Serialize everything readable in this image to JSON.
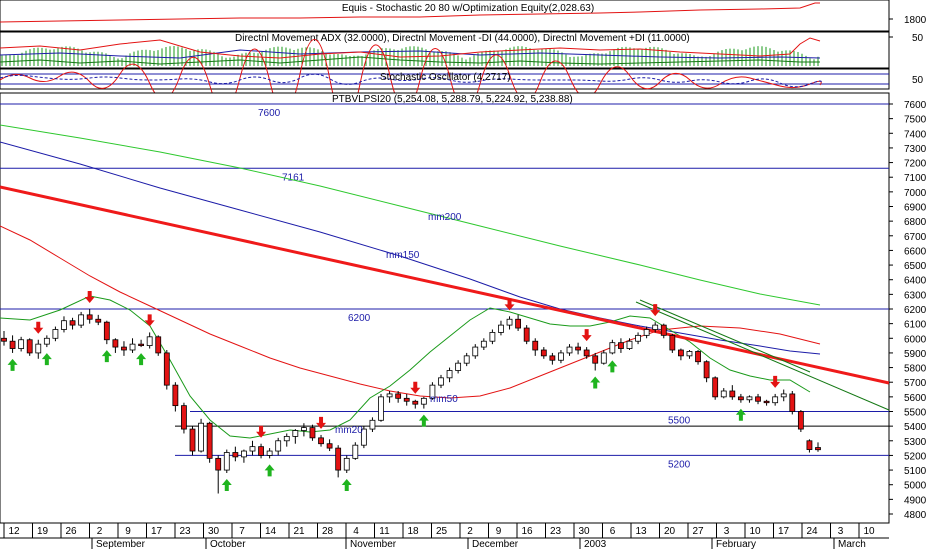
{
  "panels": {
    "equity": {
      "title": "Equis - Stochastic 20 80  w/Optimization Equity(2,028.63)",
      "ticks": [
        "1800"
      ]
    },
    "dmi": {
      "title": "Directnl Movement ADX (32.0000), Directnl Movement -DI (44.0000), Directnl Movement +DI (11.0000)",
      "ticks": [
        "50"
      ]
    },
    "stoch": {
      "title": "Stochastic Oscillator (4.2717)",
      "ticks": [
        "50"
      ]
    },
    "price": {
      "title": "PTBVLPSI20 (5,254.08, 5,288.79, 5,224.92, 5,238.88)"
    }
  },
  "colors": {
    "up": "#ffffff",
    "down": "#e31313",
    "mm20": "#1a9a1a",
    "mm50": "#e31313",
    "mm150": "#1c1ca8",
    "mm200": "#2ec82e",
    "trend_red": "#ef1a1a",
    "trend_green": "#147814",
    "level": "#1c1ca8",
    "arrow_buy": "#1fb41f",
    "arrow_sell": "#e31313"
  },
  "chart_data": {
    "type": "candlestick",
    "yaxis": {
      "ylim": [
        4700,
        7700
      ],
      "ticks": [
        4800,
        4900,
        5000,
        5100,
        5200,
        5300,
        5400,
        5500,
        5600,
        5700,
        5800,
        5900,
        6000,
        6100,
        6200,
        6300,
        6400,
        6500,
        6600,
        6700,
        6800,
        6900,
        7000,
        7100,
        7200,
        7300,
        7400,
        7500,
        7600
      ]
    },
    "xaxis": {
      "day_ticks": [
        "12",
        "19",
        "26",
        "2",
        "9",
        "17",
        "23",
        "30",
        "7",
        "14",
        "21",
        "28",
        "4",
        "11",
        "18",
        "25",
        "2",
        "9",
        "16",
        "23",
        "30",
        "6",
        "13",
        "20",
        "27",
        "3",
        "10",
        "17",
        "24",
        "3",
        "10"
      ],
      "month_labels": [
        "September",
        "October",
        "November",
        "December",
        "2003",
        "February",
        "March"
      ]
    },
    "level_lines": [
      {
        "value": 7600,
        "label": "7600"
      },
      {
        "value": 7161,
        "label": "7161"
      },
      {
        "value": 6200,
        "label": "6200"
      },
      {
        "value": 5500,
        "label": "5500"
      },
      {
        "value": 5400,
        "label": ""
      },
      {
        "value": 5200,
        "label": "5200"
      }
    ],
    "ma_labels": {
      "mm20": "mm20",
      "mm50": "mm50",
      "mm150": "mm150",
      "mm200": "mm200"
    },
    "ohlc": [
      [
        6000,
        6050,
        5950,
        5980
      ],
      [
        5980,
        6020,
        5900,
        5930
      ],
      [
        5930,
        6010,
        5910,
        5990
      ],
      [
        5990,
        6000,
        5880,
        5900
      ],
      [
        5900,
        5990,
        5860,
        5960
      ],
      [
        5960,
        6020,
        5940,
        6000
      ],
      [
        6000,
        6080,
        5980,
        6060
      ],
      [
        6060,
        6150,
        6040,
        6120
      ],
      [
        6120,
        6140,
        6060,
        6090
      ],
      [
        6090,
        6180,
        6070,
        6160
      ],
      [
        6160,
        6200,
        6100,
        6130
      ],
      [
        6130,
        6160,
        6090,
        6110
      ],
      [
        6110,
        6120,
        5960,
        5990
      ],
      [
        5990,
        6000,
        5900,
        5940
      ],
      [
        5940,
        5980,
        5880,
        5920
      ],
      [
        5920,
        6000,
        5900,
        5960
      ],
      [
        5960,
        5990,
        5940,
        5950
      ],
      [
        5950,
        6040,
        5930,
        6010
      ],
      [
        6010,
        6020,
        5880,
        5900
      ],
      [
        5900,
        5920,
        5650,
        5680
      ],
      [
        5680,
        5700,
        5500,
        5540
      ],
      [
        5540,
        5560,
        5350,
        5380
      ],
      [
        5380,
        5400,
        5200,
        5230
      ],
      [
        5230,
        5450,
        5220,
        5420
      ],
      [
        5420,
        5430,
        5150,
        5180
      ],
      [
        5180,
        5200,
        4940,
        5100
      ],
      [
        5100,
        5240,
        5080,
        5220
      ],
      [
        5220,
        5260,
        5160,
        5190
      ],
      [
        5190,
        5240,
        5150,
        5230
      ],
      [
        5230,
        5300,
        5200,
        5260
      ],
      [
        5260,
        5280,
        5180,
        5200
      ],
      [
        5200,
        5250,
        5180,
        5230
      ],
      [
        5230,
        5320,
        5200,
        5300
      ],
      [
        5300,
        5350,
        5260,
        5330
      ],
      [
        5330,
        5380,
        5280,
        5370
      ],
      [
        5370,
        5420,
        5330,
        5390
      ],
      [
        5390,
        5410,
        5300,
        5320
      ],
      [
        5320,
        5340,
        5260,
        5280
      ],
      [
        5280,
        5310,
        5230,
        5250
      ],
      [
        5250,
        5270,
        5050,
        5100
      ],
      [
        5100,
        5200,
        5080,
        5180
      ],
      [
        5180,
        5290,
        5170,
        5270
      ],
      [
        5270,
        5400,
        5250,
        5380
      ],
      [
        5380,
        5460,
        5360,
        5440
      ],
      [
        5440,
        5620,
        5430,
        5600
      ],
      [
        5600,
        5640,
        5560,
        5620
      ],
      [
        5620,
        5640,
        5560,
        5590
      ],
      [
        5590,
        5620,
        5540,
        5570
      ],
      [
        5570,
        5580,
        5520,
        5550
      ],
      [
        5550,
        5600,
        5520,
        5590
      ],
      [
        5590,
        5700,
        5580,
        5680
      ],
      [
        5680,
        5750,
        5660,
        5730
      ],
      [
        5730,
        5800,
        5700,
        5780
      ],
      [
        5780,
        5850,
        5760,
        5830
      ],
      [
        5830,
        5900,
        5810,
        5880
      ],
      [
        5880,
        5960,
        5860,
        5940
      ],
      [
        5940,
        6000,
        5920,
        5980
      ],
      [
        5980,
        6060,
        5960,
        6040
      ],
      [
        6040,
        6120,
        6020,
        6090
      ],
      [
        6090,
        6150,
        6060,
        6130
      ],
      [
        6130,
        6160,
        6050,
        6070
      ],
      [
        6070,
        6090,
        5960,
        5980
      ],
      [
        5980,
        6000,
        5880,
        5920
      ],
      [
        5920,
        5940,
        5860,
        5880
      ],
      [
        5880,
        5900,
        5820,
        5850
      ],
      [
        5850,
        5920,
        5830,
        5900
      ],
      [
        5900,
        5960,
        5880,
        5940
      ],
      [
        5940,
        5970,
        5890,
        5920
      ],
      [
        5920,
        5940,
        5860,
        5880
      ],
      [
        5880,
        5900,
        5780,
        5830
      ],
      [
        5830,
        5920,
        5820,
        5900
      ],
      [
        5900,
        5990,
        5890,
        5970
      ],
      [
        5970,
        6000,
        5900,
        5930
      ],
      [
        5930,
        6000,
        5920,
        5980
      ],
      [
        5980,
        6040,
        5960,
        6020
      ],
      [
        6020,
        6080,
        6000,
        6060
      ],
      [
        6060,
        6110,
        6040,
        6090
      ],
      [
        6090,
        6100,
        6000,
        6020
      ],
      [
        6020,
        6030,
        5900,
        5920
      ],
      [
        5920,
        5930,
        5850,
        5880
      ],
      [
        5880,
        5920,
        5860,
        5910
      ],
      [
        5910,
        5920,
        5820,
        5840
      ],
      [
        5840,
        5850,
        5700,
        5730
      ],
      [
        5730,
        5740,
        5580,
        5600
      ],
      [
        5600,
        5660,
        5590,
        5640
      ],
      [
        5640,
        5680,
        5580,
        5600
      ],
      [
        5600,
        5620,
        5560,
        5580
      ],
      [
        5580,
        5610,
        5560,
        5600
      ],
      [
        5600,
        5620,
        5550,
        5570
      ],
      [
        5570,
        5580,
        5540,
        5560
      ],
      [
        5560,
        5620,
        5540,
        5600
      ],
      [
        5600,
        5650,
        5570,
        5620
      ],
      [
        5620,
        5640,
        5480,
        5500
      ],
      [
        5500,
        5510,
        5360,
        5380
      ],
      [
        5300,
        5310,
        5220,
        5240
      ],
      [
        5254,
        5289,
        5225,
        5239
      ]
    ],
    "signals": [
      {
        "type": "buy",
        "index": 1
      },
      {
        "type": "sell",
        "index": 4
      },
      {
        "type": "buy",
        "index": 5
      },
      {
        "type": "sell",
        "index": 10
      },
      {
        "type": "buy",
        "index": 12
      },
      {
        "type": "buy",
        "index": 16
      },
      {
        "type": "sell",
        "index": 17
      },
      {
        "type": "buy",
        "index": 26
      },
      {
        "type": "sell",
        "index": 30
      },
      {
        "type": "buy",
        "index": 31
      },
      {
        "type": "sell",
        "index": 37
      },
      {
        "type": "buy",
        "index": 40
      },
      {
        "type": "sell",
        "index": 48
      },
      {
        "type": "buy",
        "index": 49
      },
      {
        "type": "sell",
        "index": 59
      },
      {
        "type": "sell",
        "index": 68
      },
      {
        "type": "buy",
        "index": 69
      },
      {
        "type": "buy",
        "index": 71
      },
      {
        "type": "sell",
        "index": 76
      },
      {
        "type": "buy",
        "index": 86
      },
      {
        "type": "sell",
        "index": 90
      }
    ]
  }
}
